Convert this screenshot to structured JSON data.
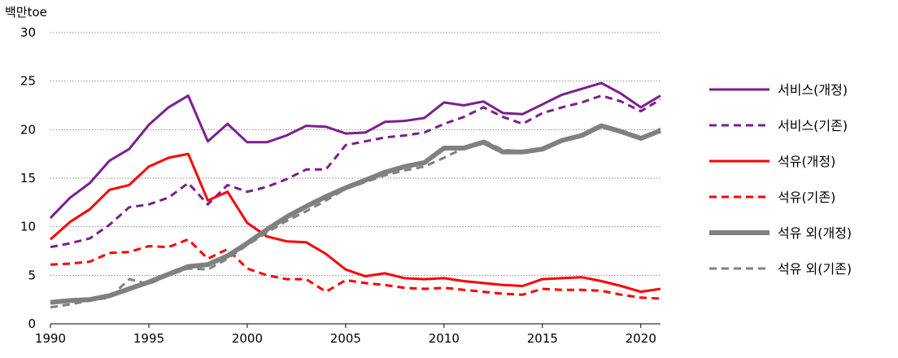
{
  "chart_data": {
    "type": "line",
    "unit_label": "백만toe",
    "ylim": [
      0,
      30
    ],
    "yticks": [
      0,
      5,
      10,
      15,
      20,
      25,
      30
    ],
    "xlim": [
      1990,
      2021
    ],
    "xticks": [
      1990,
      1995,
      2000,
      2005,
      2010,
      2015,
      2020
    ],
    "grid": "horizontal-dotted",
    "legend_position": "right",
    "x": [
      1990,
      1991,
      1992,
      1993,
      1994,
      1995,
      1996,
      1997,
      1998,
      1999,
      2000,
      2001,
      2002,
      2003,
      2004,
      2005,
      2006,
      2007,
      2008,
      2009,
      2010,
      2011,
      2012,
      2013,
      2014,
      2015,
      2016,
      2017,
      2018,
      2019,
      2020,
      2021
    ],
    "series": [
      {
        "name": "서비스(개정)",
        "color": "#7B1F8F",
        "style": "solid",
        "values": [
          10.9,
          13.0,
          14.5,
          16.8,
          18.0,
          20.5,
          22.3,
          23.5,
          18.8,
          20.6,
          18.7,
          18.7,
          19.4,
          20.4,
          20.3,
          19.6,
          19.7,
          20.8,
          20.9,
          21.2,
          22.8,
          22.5,
          22.9,
          21.7,
          21.6,
          22.6,
          23.6,
          24.2,
          24.8,
          23.7,
          22.3,
          23.5
        ]
      },
      {
        "name": "서비스(기존)",
        "color": "#7B1F8F",
        "style": "dashed",
        "values": [
          7.9,
          8.3,
          8.8,
          10.2,
          12.0,
          12.3,
          13.0,
          14.5,
          12.3,
          14.3,
          13.6,
          14.1,
          14.9,
          15.9,
          15.9,
          18.4,
          18.8,
          19.2,
          19.4,
          19.7,
          20.6,
          21.3,
          22.3,
          21.3,
          20.6,
          21.7,
          22.3,
          22.8,
          23.5,
          22.9,
          21.9,
          23.1
        ]
      },
      {
        "name": "석유(개정)",
        "color": "#FF0000",
        "style": "solid",
        "values": [
          8.7,
          10.5,
          11.8,
          13.8,
          14.3,
          16.2,
          17.1,
          17.5,
          12.7,
          13.6,
          10.4,
          9.0,
          8.5,
          8.4,
          7.2,
          5.6,
          4.9,
          5.2,
          4.7,
          4.6,
          4.7,
          4.4,
          4.2,
          4.0,
          3.9,
          4.6,
          4.7,
          4.8,
          4.4,
          3.9,
          3.3,
          3.6
        ]
      },
      {
        "name": "석유(기존)",
        "color": "#FF0000",
        "style": "dashed",
        "values": [
          6.1,
          6.2,
          6.4,
          7.3,
          7.4,
          8.0,
          7.9,
          8.7,
          6.7,
          7.7,
          5.7,
          5.0,
          4.6,
          4.6,
          3.3,
          4.5,
          4.2,
          4.0,
          3.7,
          3.6,
          3.7,
          3.5,
          3.3,
          3.1,
          3.0,
          3.6,
          3.5,
          3.5,
          3.4,
          3.0,
          2.7,
          2.6
        ]
      },
      {
        "name": "석유 외(개정)",
        "color": "#808080",
        "style": "solid-thick",
        "values": [
          2.2,
          2.4,
          2.5,
          2.9,
          3.6,
          4.3,
          5.1,
          5.9,
          6.1,
          7.0,
          8.3,
          9.7,
          11.0,
          12.1,
          13.1,
          14.0,
          14.8,
          15.6,
          16.2,
          16.6,
          18.1,
          18.1,
          18.7,
          17.7,
          17.7,
          18.0,
          18.9,
          19.4,
          20.4,
          19.8,
          19.1,
          19.9
        ]
      },
      {
        "name": "석유 외(기존)",
        "color": "#808080",
        "style": "dashed",
        "values": [
          1.7,
          2.0,
          2.4,
          2.7,
          4.6,
          4.1,
          5.0,
          5.7,
          5.6,
          6.7,
          8.1,
          9.4,
          10.6,
          11.6,
          12.7,
          13.9,
          14.6,
          15.3,
          15.8,
          16.2,
          17.1,
          18.1,
          18.9,
          17.9,
          17.8,
          18.1,
          18.9,
          19.4,
          20.3,
          19.8,
          19.0,
          20.1
        ]
      }
    ]
  }
}
